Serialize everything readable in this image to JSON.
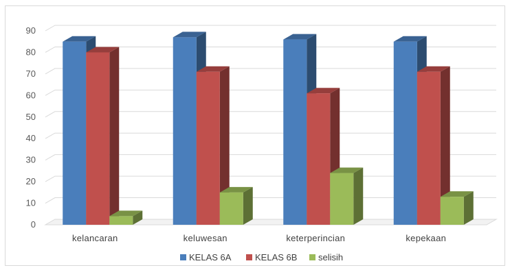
{
  "chart_data": {
    "type": "bar",
    "categories": [
      "kelancaran",
      "keluwesan",
      "keterperincian",
      "kepekaan"
    ],
    "series": [
      {
        "name": "KELAS 6A",
        "values": [
          85,
          87,
          86,
          85
        ],
        "color": "#4a7ebb"
      },
      {
        "name": "KELAS 6B",
        "values": [
          80,
          71,
          61,
          71
        ],
        "color": "#c0504d"
      },
      {
        "name": "selisih",
        "values": [
          4,
          15,
          24,
          13
        ],
        "color": "#9bbb59"
      }
    ],
    "yticks": [
      0,
      10,
      20,
      30,
      40,
      50,
      60,
      70,
      80,
      90
    ],
    "ylim": [
      0,
      90
    ],
    "grid": true,
    "legend_position": "bottom",
    "title": "",
    "xlabel": "",
    "ylabel": ""
  }
}
